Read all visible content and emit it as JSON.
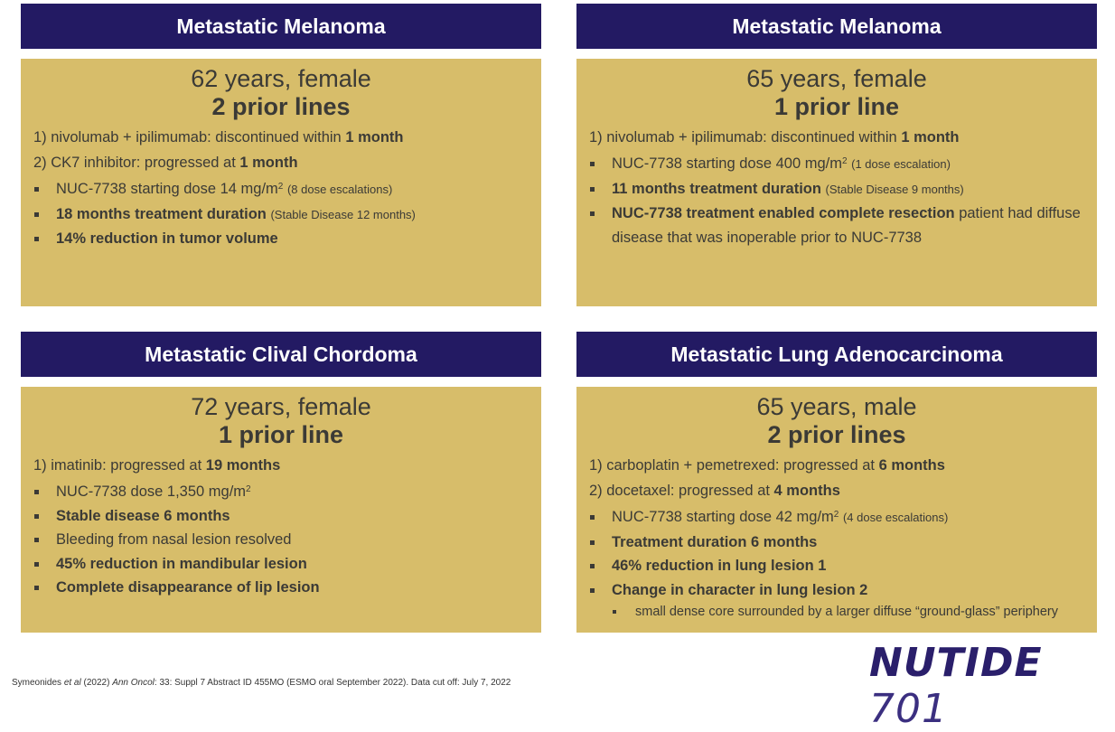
{
  "cards": [
    {
      "title": "Metastatic Melanoma",
      "age": "62 years, female",
      "lines": "2 prior lines",
      "prior": [
        {
          "text": "1) nivolumab + ipilimumab: discontinued within ",
          "bold": "1 month"
        },
        {
          "text": "2) CK7 inhibitor: progressed at ",
          "bold": "1 month"
        }
      ],
      "bullets": [
        {
          "text": "NUC-7738 starting dose 14 mg/m",
          "sup": "2",
          "small": "(8 dose escalations)"
        },
        {
          "bold": "18 months treatment duration",
          "small": "(Stable Disease 12 months)"
        },
        {
          "bold": "14% reduction in tumor volume"
        }
      ]
    },
    {
      "title": "Metastatic Melanoma",
      "age": "65 years, female",
      "lines": "1 prior line",
      "prior": [
        {
          "text": "1) nivolumab + ipilimumab: discontinued within ",
          "bold": "1 month"
        }
      ],
      "bullets": [
        {
          "text": "NUC-7738 starting dose 400 mg/m",
          "sup": "2",
          "small": "(1 dose escalation)"
        },
        {
          "bold": "11 months treatment duration",
          "small": "(Stable Disease 9 months)"
        },
        {
          "bold": "NUC-7738 treatment enabled complete resection",
          "rest": " patient had diffuse disease that was inoperable prior to NUC-7738"
        }
      ]
    },
    {
      "title": "Metastatic Clival Chordoma",
      "age": "72 years, female",
      "lines": "1 prior line",
      "prior": [
        {
          "text": "1) imatinib: progressed at ",
          "bold": "19 months"
        }
      ],
      "bullets": [
        {
          "text": "NUC-7738 dose 1,350 mg/m",
          "sup": "2"
        },
        {
          "bold": "Stable disease 6 months"
        },
        {
          "text": "Bleeding from nasal lesion resolved"
        },
        {
          "bold": "45% reduction in mandibular lesion"
        },
        {
          "bold": "Complete disappearance of lip lesion"
        }
      ]
    },
    {
      "title": "Metastatic Lung Adenocarcinoma",
      "age": "65 years, male",
      "lines": "2 prior lines",
      "prior": [
        {
          "text": "1) carboplatin + pemetrexed: progressed at ",
          "bold": "6 months"
        },
        {
          "text": "2) docetaxel: progressed at ",
          "bold": "4 months"
        }
      ],
      "bullets": [
        {
          "text": "NUC-7738 starting dose 42 mg/m",
          "sup": "2",
          "small": "(4 dose escalations)"
        },
        {
          "bold": "Treatment duration 6 months"
        },
        {
          "bold": "46% reduction in lung lesion 1"
        },
        {
          "bold": "Change in character in lung lesion 2"
        }
      ],
      "subbullets": [
        "small dense core surrounded by a larger diffuse “ground-glass” periphery"
      ]
    }
  ],
  "footer": {
    "authors": "Symeonides ",
    "etal": "et al",
    "year": " (2022) ",
    "journal": "Ann Oncol",
    "rest": ": 33: Suppl 7 Abstract ID 455MO (ESMO oral September 2022). Data cut off: July 7, 2022"
  },
  "logo": {
    "word": "NUTIDE",
    "num": "701"
  },
  "colors": {
    "header": "#231a63",
    "card": "#d7bd6a",
    "text": "#3b3a36"
  }
}
